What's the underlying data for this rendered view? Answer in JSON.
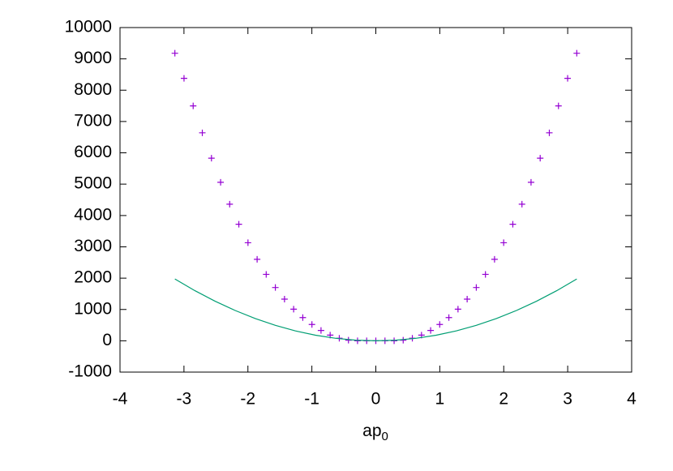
{
  "chart_data": {
    "type": "scatter",
    "xlabel": "ap",
    "xlabel_subscript": "0",
    "xlim": [
      -4,
      4
    ],
    "xticks": [
      -4,
      -3,
      -2,
      -1,
      0,
      1,
      2,
      3,
      4
    ],
    "ylim": [
      -1000,
      10000
    ],
    "yticks": [
      -1000,
      0,
      1000,
      2000,
      3000,
      4000,
      5000,
      6000,
      7000,
      8000,
      9000,
      10000
    ],
    "series": [
      {
        "style": "points",
        "color": "#9400d3",
        "x": [
          -3.142,
          -2.999,
          -2.856,
          -2.713,
          -2.57,
          -2.427,
          -2.285,
          -2.142,
          -1.999,
          -1.856,
          -1.714,
          -1.571,
          -1.428,
          -1.285,
          -1.142,
          -0.999,
          -0.857,
          -0.714,
          -0.571,
          -0.428,
          -0.286,
          -0.143,
          0,
          0.143,
          0.286,
          0.428,
          0.571,
          0.714,
          0.857,
          0.999,
          1.142,
          1.285,
          1.428,
          1.571,
          1.714,
          1.856,
          1.999,
          2.142,
          2.285,
          2.427,
          2.57,
          2.713,
          2.856,
          2.999,
          3.142
        ],
        "values": [
          9180,
          8380,
          7500,
          6640,
          5830,
          5060,
          4360,
          3720,
          3130,
          2600,
          2120,
          1700,
          1330,
          1010,
          740,
          520,
          330,
          180,
          80,
          20,
          0,
          0,
          0,
          0,
          0,
          20,
          80,
          180,
          330,
          520,
          740,
          1010,
          1330,
          1700,
          2120,
          2600,
          3130,
          3720,
          4360,
          5060,
          5830,
          6640,
          7500,
          8380,
          9180
        ]
      },
      {
        "style": "line",
        "color": "#009e73",
        "x": [
          -3.142,
          -2.828,
          -2.513,
          -2.199,
          -1.885,
          -1.571,
          -1.257,
          -0.943,
          -0.628,
          -0.314,
          0,
          0.314,
          0.628,
          0.943,
          1.257,
          1.571,
          1.885,
          2.199,
          2.513,
          2.828,
          3.142
        ],
        "values": [
          1974,
          1599,
          1264,
          967,
          711,
          494,
          316,
          178,
          79,
          20,
          0,
          20,
          79,
          178,
          316,
          494,
          711,
          967,
          1264,
          1599,
          1974
        ]
      }
    ]
  }
}
